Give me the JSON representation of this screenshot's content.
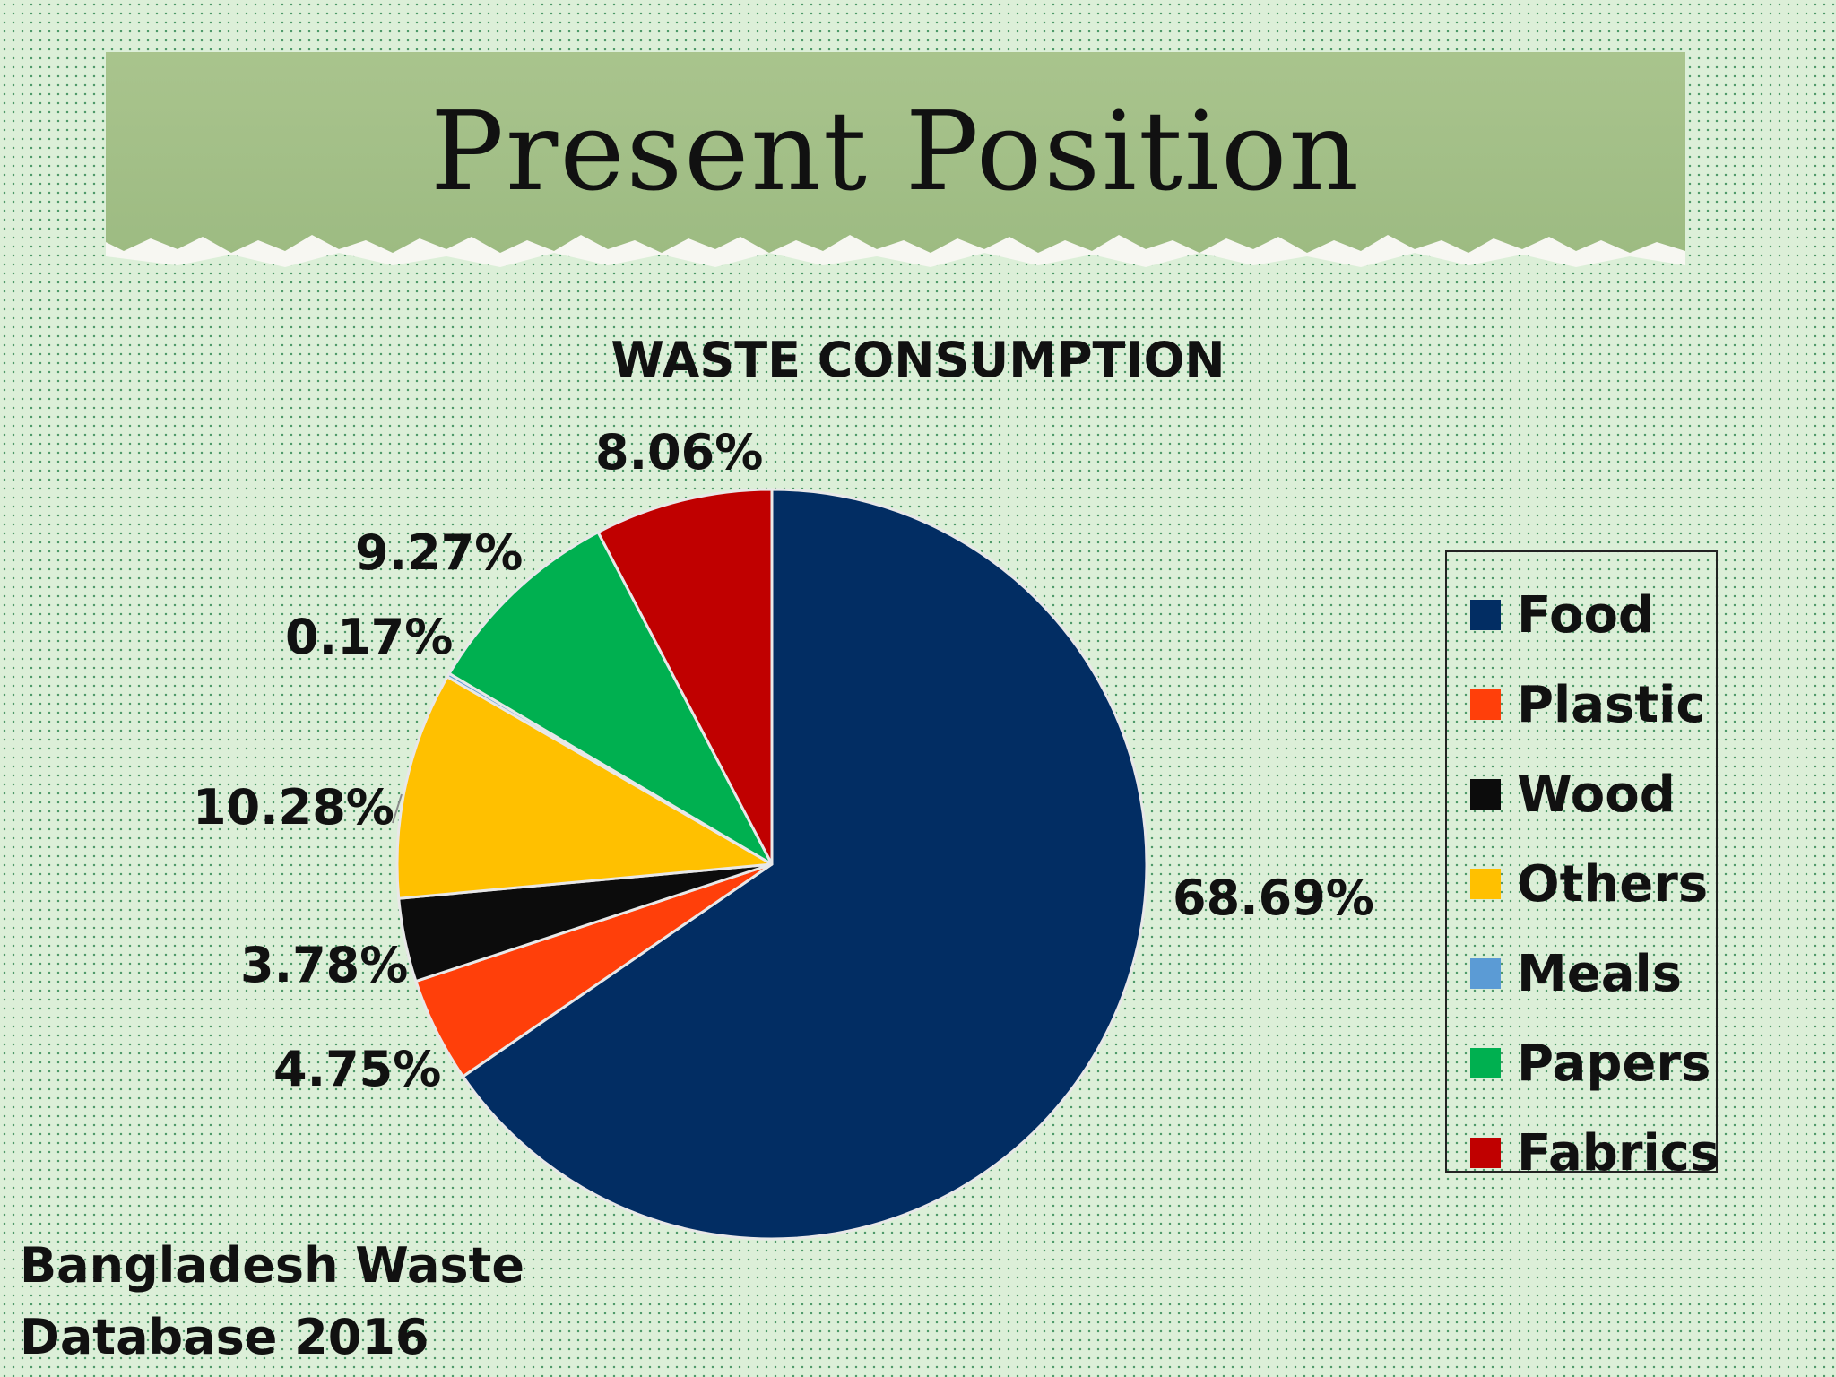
{
  "slide": {
    "title": "Present Position",
    "source_line1": "Bangladesh Waste",
    "source_line2": "Database 2016"
  },
  "chart_data": {
    "type": "pie",
    "title": "WASTE CONSUMPTION",
    "categories": [
      "Food",
      "Plastic",
      "Wood",
      "Others",
      "Meals",
      "Papers",
      "Fabrics"
    ],
    "values": [
      68.69,
      4.75,
      3.78,
      10.28,
      0.17,
      9.27,
      8.06
    ],
    "labels": [
      "68.69%",
      "4.75%",
      "3.78%",
      "10.28%",
      "0.17%",
      "9.27%",
      "8.06%"
    ],
    "colors": [
      "#022d63",
      "#ff3f0a",
      "#0c0c0c",
      "#ffc000",
      "#5b9bd5",
      "#00b050",
      "#c00000"
    ],
    "legend": "right"
  }
}
